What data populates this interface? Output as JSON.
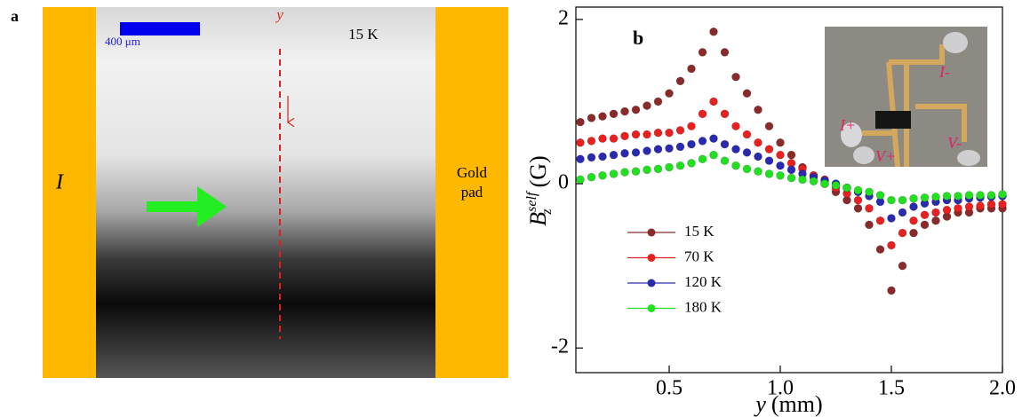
{
  "panel_a": {
    "label": "a",
    "scale_bar": "400 μm",
    "axis_label": "y",
    "temperature": "15 K",
    "current_label": "I",
    "pad_label_1": "Gold",
    "pad_label_2": "pad"
  },
  "chart_data": {
    "type": "scatter",
    "panel_label": "b",
    "xlabel": {
      "symbol": "y",
      "unit": "(mm)"
    },
    "ylabel": {
      "symbol": "B",
      "superscript": "self",
      "subscript": "z",
      "unit": "(G)"
    },
    "xlim": [
      0.08,
      2.0
    ],
    "ylim": [
      -2.3,
      2.15
    ],
    "xticks": [
      0.5,
      {
        "value": 1,
        "label": "1.0"
      },
      1.5,
      {
        "value": 2,
        "label": "2.0"
      }
    ],
    "yticks": [
      -2,
      0,
      2
    ],
    "grid": false,
    "legend": "lower left",
    "inset_labels": [
      "I-",
      "I+",
      "V-",
      "V+"
    ],
    "x": [
      0.1,
      0.15,
      0.2,
      0.25,
      0.3,
      0.35,
      0.4,
      0.45,
      0.5,
      0.55,
      0.6,
      0.65,
      0.7,
      0.75,
      0.8,
      0.85,
      0.9,
      0.95,
      1.0,
      1.05,
      1.1,
      1.15,
      1.2,
      1.25,
      1.3,
      1.35,
      1.4,
      1.45,
      1.5,
      1.55,
      1.6,
      1.65,
      1.7,
      1.75,
      1.8,
      1.85,
      1.9,
      1.95,
      2.0
    ],
    "series": [
      {
        "name": "15 K",
        "color": "#8b2a2a",
        "values": [
          0.75,
          0.8,
          0.82,
          0.85,
          0.88,
          0.9,
          0.95,
          1.0,
          1.1,
          1.25,
          1.4,
          1.6,
          1.85,
          1.6,
          1.3,
          1.1,
          0.9,
          0.7,
          0.5,
          0.35,
          0.2,
          0.1,
          0,
          -0.1,
          -0.2,
          -0.3,
          -0.5,
          -0.8,
          -1.3,
          -1.0,
          -0.6,
          -0.5,
          -0.45,
          -0.4,
          -0.35,
          -0.35,
          -0.3,
          -0.3,
          -0.3
        ]
      },
      {
        "name": "70 K",
        "color": "#e82020",
        "values": [
          0.5,
          0.52,
          0.55,
          0.55,
          0.58,
          0.6,
          0.6,
          0.62,
          0.62,
          0.65,
          0.7,
          0.85,
          1.0,
          0.85,
          0.7,
          0.6,
          0.5,
          0.42,
          0.35,
          0.25,
          0.18,
          0.1,
          0.05,
          -0.05,
          -0.12,
          -0.2,
          -0.3,
          -0.45,
          -0.75,
          -0.6,
          -0.45,
          -0.38,
          -0.35,
          -0.32,
          -0.3,
          -0.28,
          -0.27,
          -0.25,
          -0.25
        ]
      },
      {
        "name": "120 K",
        "color": "#2a2ab0",
        "values": [
          0.3,
          0.32,
          0.33,
          0.35,
          0.37,
          0.38,
          0.4,
          0.42,
          0.43,
          0.45,
          0.48,
          0.52,
          0.55,
          0.48,
          0.42,
          0.38,
          0.33,
          0.28,
          0.22,
          0.17,
          0.12,
          0.08,
          0.04,
          0,
          -0.05,
          -0.1,
          -0.15,
          -0.22,
          -0.42,
          -0.35,
          -0.28,
          -0.24,
          -0.22,
          -0.2,
          -0.2,
          -0.18,
          -0.17,
          -0.16,
          -0.15
        ]
      },
      {
        "name": "180 K",
        "color": "#20e020",
        "values": [
          0.05,
          0.08,
          0.1,
          0.12,
          0.14,
          0.15,
          0.17,
          0.18,
          0.2,
          0.22,
          0.25,
          0.3,
          0.35,
          0.28,
          0.22,
          0.18,
          0.15,
          0.12,
          0.1,
          0.07,
          0.05,
          0.03,
          0,
          -0.02,
          -0.05,
          -0.08,
          -0.1,
          -0.14,
          -0.2,
          -0.2,
          -0.18,
          -0.17,
          -0.16,
          -0.15,
          -0.15,
          -0.14,
          -0.14,
          -0.14,
          -0.13
        ]
      }
    ]
  }
}
